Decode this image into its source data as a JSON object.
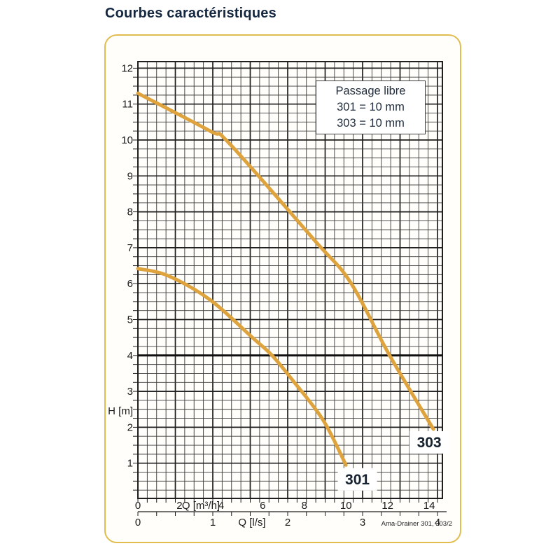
{
  "chart_data": {
    "type": "line",
    "title": "Courbes caractéristiques",
    "ylabel": "H [m]",
    "y_axis": {
      "ticks": [
        1,
        2,
        3,
        4,
        5,
        6,
        7,
        8,
        9,
        10,
        11,
        12
      ],
      "range": [
        0,
        12.18
      ]
    },
    "x_axes": [
      {
        "unit": "Q [m³/h]",
        "ticks": [
          0,
          2,
          4,
          6,
          8,
          10,
          12,
          14
        ],
        "range": [
          0,
          14.64
        ]
      },
      {
        "unit": "Q [l/s]",
        "ticks": [
          0,
          1,
          2,
          3,
          4
        ],
        "range": [
          0,
          4.066
        ]
      }
    ],
    "grid": "on",
    "reference_line_h": 4,
    "legend_box": {
      "title": "Passage libre",
      "lines": [
        "301 = 10 mm",
        "303 = 10 mm"
      ]
    },
    "series": [
      {
        "name": "301",
        "points_q_m3h_h_m": [
          [
            0,
            6.42
          ],
          [
            1.45,
            6.22
          ],
          [
            3.47,
            5.55
          ],
          [
            5.5,
            4.5
          ],
          [
            6.45,
            4.0
          ],
          [
            7.45,
            3.3
          ],
          [
            8.9,
            2.2
          ],
          [
            10.0,
            0.95
          ]
        ],
        "label_at": [
          10.55,
          0.55
        ]
      },
      {
        "name": "303",
        "points_q_m3h_h_m": [
          [
            0,
            11.3
          ],
          [
            3.47,
            10.25
          ],
          [
            4.4,
            9.9
          ],
          [
            8.5,
            7.2
          ],
          [
            10.2,
            6.05
          ],
          [
            12.1,
            4.0
          ],
          [
            14.2,
            1.95
          ]
        ],
        "label_at": [
          14.0,
          1.58
        ]
      }
    ],
    "annotation": "Ama-Drainer 301, 303/2",
    "colors": {
      "curve": "#DFA33E",
      "panel_border": "#E1BC4E",
      "grid_minor": "#3a3a3a",
      "grid_major": "#1f1f1f",
      "text": "#1C2B3A"
    }
  }
}
